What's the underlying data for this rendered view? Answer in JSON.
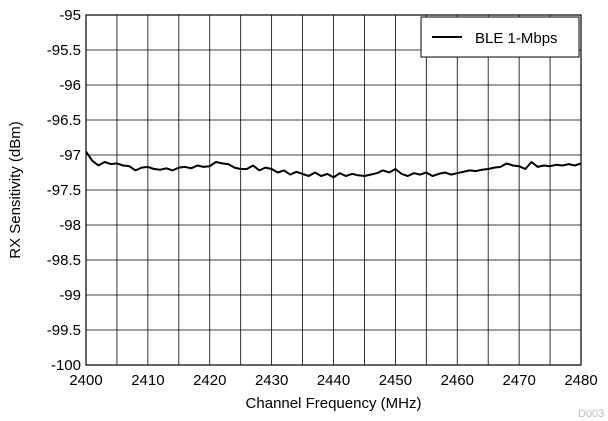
{
  "chart_data": {
    "type": "line",
    "title": "",
    "xlabel": "Channel Frequency (MHz)",
    "ylabel": "RX Sensitivity (dBm)",
    "xlim": [
      2400,
      2480
    ],
    "ylim": [
      -100,
      -95
    ],
    "x_ticks": [
      2400,
      2410,
      2420,
      2430,
      2440,
      2450,
      2460,
      2470,
      2480
    ],
    "y_ticks": [
      -95,
      -95.5,
      -96,
      -96.5,
      -97,
      -97.5,
      -98,
      -98.5,
      -99,
      -99.5,
      -100
    ],
    "x_tick_labels": [
      "2400",
      "2410",
      "2420",
      "2430",
      "2440",
      "2450",
      "2460",
      "2470",
      "2480"
    ],
    "y_tick_labels": [
      "-95",
      "-95.5",
      "-96",
      "-96.5",
      "-97",
      "-97.5",
      "-98",
      "-98.5",
      "-99",
      "-99.5",
      "-100"
    ],
    "grid": true,
    "legend_position": "top-right",
    "series": [
      {
        "name": "BLE 1-Mbps",
        "color": "#000000",
        "x": [
          2400,
          2401,
          2402,
          2403,
          2404,
          2405,
          2406,
          2407,
          2408,
          2409,
          2410,
          2411,
          2412,
          2413,
          2414,
          2415,
          2416,
          2417,
          2418,
          2419,
          2420,
          2421,
          2422,
          2423,
          2424,
          2425,
          2426,
          2427,
          2428,
          2429,
          2430,
          2431,
          2432,
          2433,
          2434,
          2435,
          2436,
          2437,
          2438,
          2439,
          2440,
          2441,
          2442,
          2443,
          2444,
          2445,
          2446,
          2447,
          2448,
          2449,
          2450,
          2451,
          2452,
          2453,
          2454,
          2455,
          2456,
          2457,
          2458,
          2459,
          2460,
          2461,
          2462,
          2463,
          2464,
          2465,
          2466,
          2467,
          2468,
          2469,
          2470,
          2471,
          2472,
          2473,
          2474,
          2475,
          2476,
          2477,
          2478,
          2479,
          2480
        ],
        "y": [
          -96.95,
          -97.08,
          -97.15,
          -97.1,
          -97.13,
          -97.12,
          -97.15,
          -97.16,
          -97.22,
          -97.18,
          -97.17,
          -97.2,
          -97.21,
          -97.19,
          -97.22,
          -97.18,
          -97.17,
          -97.19,
          -97.15,
          -97.17,
          -97.16,
          -97.1,
          -97.12,
          -97.13,
          -97.18,
          -97.2,
          -97.2,
          -97.15,
          -97.22,
          -97.18,
          -97.2,
          -97.25,
          -97.22,
          -97.28,
          -97.24,
          -97.27,
          -97.3,
          -97.25,
          -97.3,
          -97.27,
          -97.32,
          -97.26,
          -97.3,
          -97.27,
          -97.29,
          -97.3,
          -97.28,
          -97.26,
          -97.22,
          -97.25,
          -97.2,
          -97.27,
          -97.3,
          -97.26,
          -97.28,
          -97.25,
          -97.3,
          -97.27,
          -97.25,
          -97.28,
          -97.26,
          -97.24,
          -97.22,
          -97.23,
          -97.21,
          -97.2,
          -97.18,
          -97.17,
          -97.12,
          -97.15,
          -97.16,
          -97.2,
          -97.1,
          -97.17,
          -97.15,
          -97.16,
          -97.14,
          -97.15,
          -97.13,
          -97.15,
          -97.12
        ]
      }
    ]
  },
  "figure_id": "D003"
}
